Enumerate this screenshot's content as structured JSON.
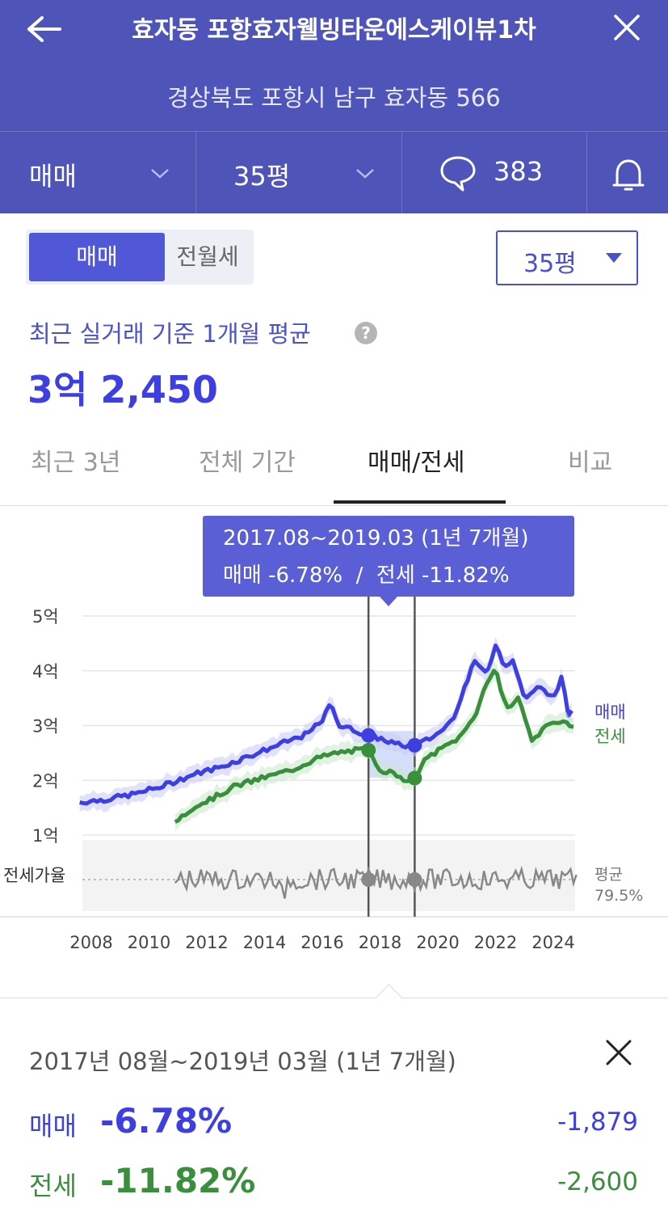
{
  "header": {
    "title": "효자동 포항효자웰빙타운에스케이뷰1차",
    "address": "경상북도 포항시 남구 효자동 566",
    "trade_type": "매매",
    "pyeong": "35평",
    "comment_count": "383"
  },
  "controls": {
    "seg_on": "매매",
    "seg_off": "전월세",
    "pyeong_select": "35평"
  },
  "summary_top": {
    "label": "최근 실거래 기준 1개월 평균",
    "help": "?",
    "price": "3억 2,450"
  },
  "tabs": [
    "최근 3년",
    "전체 기간",
    "매매/전세",
    "비교"
  ],
  "tooltip": {
    "line1": "2017.08~2019.03 (1년 7개월)",
    "line2": "매매 -6.78%  /  전세 -11.82%"
  },
  "chart_data": {
    "type": "line",
    "x_ticks": [
      "2008",
      "2010",
      "2012",
      "2014",
      "2016",
      "2018",
      "2020",
      "2022",
      "2024"
    ],
    "y_ticks": [
      "1억",
      "2억",
      "3억",
      "4억",
      "5억"
    ],
    "ylim": [
      1,
      5
    ],
    "series": [
      {
        "name": "매매",
        "color": "#3d3fe0",
        "points": [
          [
            2007.6,
            1.6
          ],
          [
            2008.5,
            1.65
          ],
          [
            2009.5,
            1.75
          ],
          [
            2010.5,
            1.9
          ],
          [
            2011.5,
            2.1
          ],
          [
            2012.5,
            2.25
          ],
          [
            2013.5,
            2.45
          ],
          [
            2014.5,
            2.65
          ],
          [
            2015.5,
            2.85
          ],
          [
            2016.0,
            3.1
          ],
          [
            2016.3,
            3.4
          ],
          [
            2016.6,
            3.0
          ],
          [
            2017.2,
            2.9
          ],
          [
            2017.6,
            2.82
          ],
          [
            2018.1,
            2.75
          ],
          [
            2018.6,
            2.65
          ],
          [
            2019.1,
            2.62
          ],
          [
            2019.5,
            2.7
          ],
          [
            2020.0,
            2.85
          ],
          [
            2020.5,
            3.1
          ],
          [
            2021.0,
            3.8
          ],
          [
            2021.3,
            4.2
          ],
          [
            2021.7,
            3.9
          ],
          [
            2022.0,
            4.5
          ],
          [
            2022.3,
            4.1
          ],
          [
            2022.6,
            4.2
          ],
          [
            2023.0,
            3.5
          ],
          [
            2023.5,
            3.7
          ],
          [
            2024.0,
            3.5
          ],
          [
            2024.3,
            3.9
          ],
          [
            2024.5,
            3.2
          ],
          [
            2024.7,
            3.25
          ]
        ]
      },
      {
        "name": "전세",
        "color": "#3a8f3d",
        "points": [
          [
            2010.9,
            1.25
          ],
          [
            2011.5,
            1.5
          ],
          [
            2012.3,
            1.7
          ],
          [
            2013.0,
            1.9
          ],
          [
            2014.0,
            2.05
          ],
          [
            2015.0,
            2.2
          ],
          [
            2015.8,
            2.4
          ],
          [
            2016.5,
            2.5
          ],
          [
            2017.2,
            2.55
          ],
          [
            2017.6,
            2.55
          ],
          [
            2018.0,
            2.2
          ],
          [
            2018.6,
            2.1
          ],
          [
            2019.1,
            1.95
          ],
          [
            2019.6,
            2.4
          ],
          [
            2020.2,
            2.6
          ],
          [
            2020.8,
            2.8
          ],
          [
            2021.3,
            3.2
          ],
          [
            2021.7,
            3.8
          ],
          [
            2022.0,
            4.0
          ],
          [
            2022.4,
            3.3
          ],
          [
            2022.8,
            3.5
          ],
          [
            2023.3,
            2.7
          ],
          [
            2023.8,
            3.0
          ],
          [
            2024.3,
            3.1
          ],
          [
            2024.7,
            3.0
          ]
        ]
      }
    ],
    "ratio": {
      "name": "전세가율",
      "avg_label": "평균",
      "avg_value": "79.5%"
    },
    "selection": {
      "start": 2017.6,
      "end": 2019.2
    }
  },
  "detail": {
    "period": "2017년 08월~2019년 03월 (1년 7개월)",
    "rows": [
      {
        "label": "매매",
        "pct": "-6.78%",
        "diff": "-1,879",
        "color": "#3d3fe0"
      },
      {
        "label": "전세",
        "pct": "-11.82%",
        "diff": "-2,600",
        "color": "#3a8f3d"
      }
    ]
  }
}
